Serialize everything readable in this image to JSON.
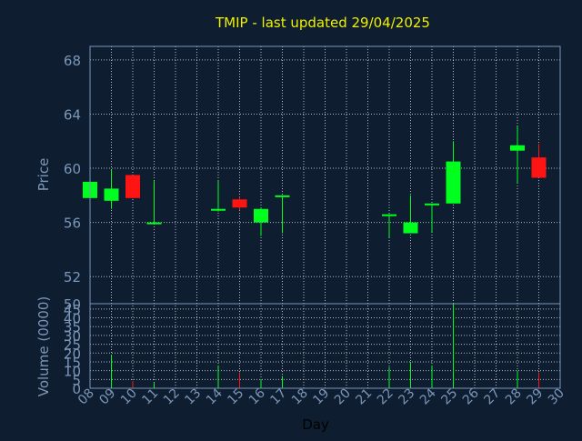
{
  "chart_data": {
    "type": "candlestick",
    "title": "TMIP - last updated 29/04/2025",
    "xlabel": "Day",
    "colors": {
      "background": "#0e1e30",
      "grid": "#cfd6e0",
      "axis_text": "#7a96b8",
      "title": "#f0f000",
      "up": "#00ff1e",
      "down": "#ff1414"
    },
    "x_ticks": [
      "08",
      "09",
      "10",
      "11",
      "12",
      "13",
      "14",
      "15",
      "16",
      "17",
      "18",
      "19",
      "20",
      "21",
      "22",
      "23",
      "24",
      "25",
      "26",
      "27",
      "28",
      "29",
      "30"
    ],
    "price_panel": {
      "ylabel": "Price",
      "ylim": [
        50,
        69
      ],
      "y_ticks": [
        50,
        52,
        56,
        60,
        64,
        68
      ],
      "grid": true
    },
    "volume_panel": {
      "ylabel": "Volume (0000)",
      "ylim": [
        0,
        48
      ],
      "y_ticks": [
        0,
        5,
        10,
        15,
        20,
        25,
        30,
        35,
        40,
        45
      ],
      "grid": true
    },
    "candles": [
      {
        "day": "08",
        "open": 57.8,
        "high": 59.0,
        "low": 57.8,
        "close": 59.0,
        "volume": 0
      },
      {
        "day": "09",
        "open": 57.6,
        "high": 59.9,
        "low": 57.0,
        "close": 58.5,
        "volume": 19
      },
      {
        "day": "10",
        "open": 59.5,
        "high": 59.5,
        "low": 57.8,
        "close": 57.8,
        "volume": 4
      },
      {
        "day": "11",
        "open": 55.9,
        "high": 59.1,
        "low": 55.9,
        "close": 56.0,
        "volume": 3
      },
      {
        "day": "14",
        "open": 56.9,
        "high": 59.1,
        "low": 56.8,
        "close": 57.0,
        "volume": 13
      },
      {
        "day": "15",
        "open": 57.7,
        "high": 57.9,
        "low": 56.9,
        "close": 57.1,
        "volume": 9
      },
      {
        "day": "16",
        "open": 56.0,
        "high": 57.1,
        "low": 55.0,
        "close": 57.0,
        "volume": 5
      },
      {
        "day": "17",
        "open": 57.9,
        "high": 58.0,
        "low": 55.2,
        "close": 58.0,
        "volume": 7
      },
      {
        "day": "22",
        "open": 56.5,
        "high": 56.6,
        "low": 54.9,
        "close": 56.6,
        "volume": 12
      },
      {
        "day": "23",
        "open": 55.2,
        "high": 58.0,
        "low": 55.2,
        "close": 56.0,
        "volume": 15
      },
      {
        "day": "24",
        "open": 57.3,
        "high": 57.4,
        "low": 55.3,
        "close": 57.4,
        "volume": 13
      },
      {
        "day": "25",
        "open": 57.4,
        "high": 62.0,
        "low": 57.4,
        "close": 60.5,
        "volume": 48
      },
      {
        "day": "28",
        "open": 61.3,
        "high": 63.1,
        "low": 58.9,
        "close": 61.7,
        "volume": 10
      },
      {
        "day": "29",
        "open": 60.8,
        "high": 61.8,
        "low": 59.3,
        "close": 59.3,
        "volume": 9
      }
    ]
  }
}
